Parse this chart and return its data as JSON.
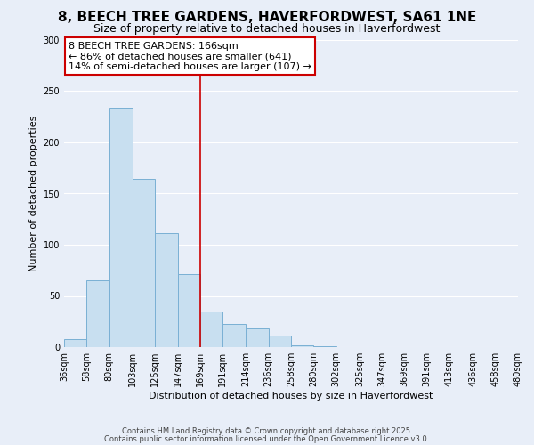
{
  "title": "8, BEECH TREE GARDENS, HAVERFORDWEST, SA61 1NE",
  "subtitle": "Size of property relative to detached houses in Haverfordwest",
  "xlabel": "Distribution of detached houses by size in Haverfordwest",
  "ylabel": "Number of detached properties",
  "bin_labels": [
    "36sqm",
    "58sqm",
    "80sqm",
    "103sqm",
    "125sqm",
    "147sqm",
    "169sqm",
    "191sqm",
    "214sqm",
    "236sqm",
    "258sqm",
    "280sqm",
    "302sqm",
    "325sqm",
    "347sqm",
    "369sqm",
    "391sqm",
    "413sqm",
    "436sqm",
    "458sqm",
    "480sqm"
  ],
  "bin_edges": [
    36,
    58,
    80,
    103,
    125,
    147,
    169,
    191,
    214,
    236,
    258,
    280,
    302,
    325,
    347,
    369,
    391,
    413,
    436,
    458,
    480
  ],
  "bar_heights": [
    8,
    65,
    234,
    164,
    111,
    71,
    35,
    23,
    18,
    11,
    2,
    1,
    0,
    0,
    0,
    0,
    0,
    0,
    0,
    0
  ],
  "bar_color": "#c8dff0",
  "bar_edge_color": "#7ab0d4",
  "vline_x": 169,
  "vline_color": "#cc0000",
  "ylim": [
    0,
    300
  ],
  "yticks": [
    0,
    50,
    100,
    150,
    200,
    250,
    300
  ],
  "annotation_title": "8 BEECH TREE GARDENS: 166sqm",
  "annotation_line1": "← 86% of detached houses are smaller (641)",
  "annotation_line2": "14% of semi-detached houses are larger (107) →",
  "annotation_box_facecolor": "#ffffff",
  "annotation_box_edgecolor": "#cc0000",
  "footer1": "Contains HM Land Registry data © Crown copyright and database right 2025.",
  "footer2": "Contains public sector information licensed under the Open Government Licence v3.0.",
  "bg_color": "#e8eef8",
  "grid_color": "#ffffff",
  "title_fontsize": 11,
  "subtitle_fontsize": 9,
  "annotation_fontsize": 8,
  "tick_fontsize": 7,
  "ylabel_fontsize": 8,
  "xlabel_fontsize": 8,
  "footer_fontsize": 6
}
